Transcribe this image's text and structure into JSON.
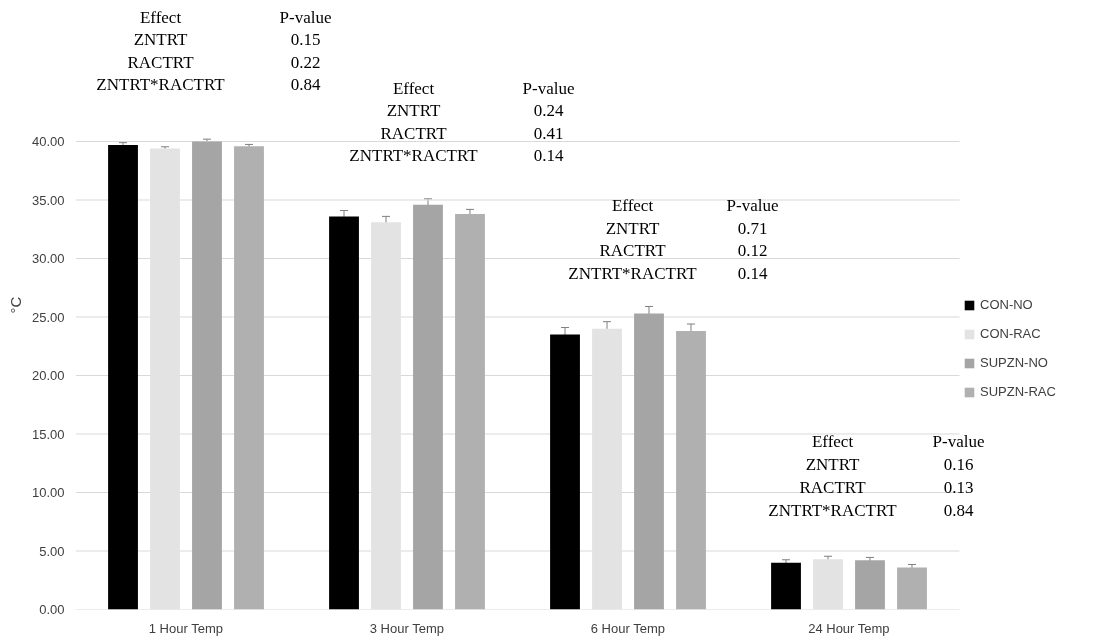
{
  "chart_data": {
    "type": "bar",
    "ylabel": "°C",
    "categories": [
      "1 Hour Temp",
      "3 Hour Temp",
      "6 Hour Temp",
      "24 Hour Temp"
    ],
    "series": [
      {
        "name": "CON-NO",
        "color": "#000000",
        "values": [
          39.7,
          33.6,
          23.5,
          4.0
        ],
        "errors": [
          0.2,
          0.5,
          0.6,
          0.25
        ]
      },
      {
        "name": "CON-RAC",
        "color": "#e3e3e3",
        "values": [
          39.4,
          33.1,
          24.0,
          4.3
        ],
        "errors": [
          0.15,
          0.5,
          0.6,
          0.25
        ]
      },
      {
        "name": "SUPZN-NO",
        "color": "#a5a5a5",
        "values": [
          40.0,
          34.6,
          25.3,
          4.2
        ],
        "errors": [
          0.2,
          0.5,
          0.6,
          0.25
        ]
      },
      {
        "name": "SUPZN-RAC",
        "color": "#b0b0b0",
        "values": [
          39.6,
          33.8,
          23.8,
          3.6
        ],
        "errors": [
          0.15,
          0.4,
          0.6,
          0.25
        ]
      }
    ],
    "ylim": [
      0,
      40
    ],
    "yticks": [
      {
        "value": 0,
        "label": "0.00"
      },
      {
        "value": 5,
        "label": "5.00"
      },
      {
        "value": 10,
        "label": "10.00"
      },
      {
        "value": 15,
        "label": "15.00"
      },
      {
        "value": 20,
        "label": "20.00"
      },
      {
        "value": 25,
        "label": "25.00"
      },
      {
        "value": 30,
        "label": "30.00"
      },
      {
        "value": 35,
        "label": "35.00"
      },
      {
        "value": 40,
        "label": "40.00"
      }
    ],
    "grid": "y",
    "legend": "right",
    "annotations": [
      "Effect",
      "P-value",
      "ZNTRT",
      "0.15",
      "RACTRT",
      "0.22",
      "ZNTRT*RACTRT",
      "0.84",
      "Effect",
      "P-value",
      "ZNTRT",
      "0.24",
      "RACTRT",
      "0.41",
      "ZNTRT*RACTRT",
      "0.14",
      "Effect",
      "P-value",
      "ZNTRT",
      "0.71",
      "RACTRT",
      "0.12",
      "ZNTRT*RACTRT",
      "0.14",
      "Effect",
      "P-value",
      "ZNTRT",
      "0.16",
      "RACTRT",
      "0.13",
      "ZNTRT*RACTRT",
      "0.84"
    ]
  }
}
